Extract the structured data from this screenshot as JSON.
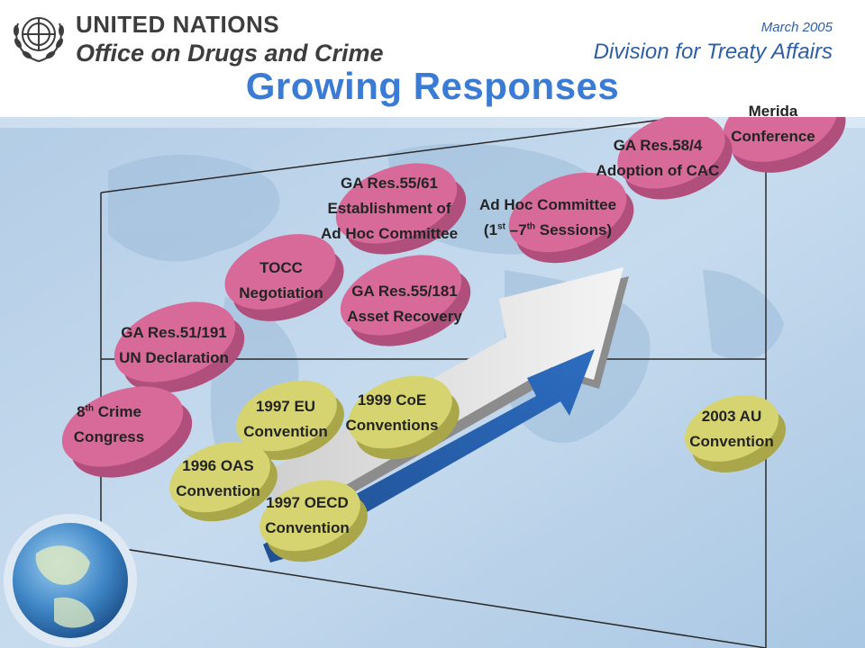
{
  "header": {
    "org_line1": "UNITED NATIONS",
    "org_line2": "Office on Drugs and Crime",
    "date": "March 2005",
    "division": "Division for Treaty Affairs",
    "logo_icon": "un-emblem-icon"
  },
  "slide": {
    "title": "Growing Responses"
  },
  "events": {
    "merida": {
      "line1": "Merida",
      "line2": "Conference"
    },
    "ga58": {
      "line1": "GA Res.58/4",
      "line2": "Adoption of CAC"
    },
    "ga5561": {
      "line1": "GA Res.55/61",
      "line2": "Establishment of",
      "line3": "Ad Hoc Committee"
    },
    "adhoc": {
      "line1": "Ad Hoc Committee",
      "line2_pre": "(1",
      "sup1": "st",
      "line2_mid": " –7",
      "sup2": "th",
      "line2_post": " Sessions)"
    },
    "tocc": {
      "line1": "TOCC",
      "line2": "Negotiation"
    },
    "ga55181": {
      "line1": "GA Res.55/181",
      "line2": "Asset Recovery"
    },
    "ga51191": {
      "line1": "GA Res.51/191",
      "line2": "UN Declaration"
    },
    "crime": {
      "line1_pre": "8",
      "sup": "th",
      "line1_post": " Crime",
      "line2": "Congress"
    },
    "eu1997": {
      "line1": "1997 EU",
      "line2": "Convention"
    },
    "coe1999": {
      "line1": "1999 CoE",
      "line2": "Conventions"
    },
    "oas1996": {
      "line1": "1996 OAS",
      "line2": "Convention"
    },
    "oecd1997": {
      "line1": "1997 OECD",
      "line2": "Convention"
    },
    "au2003": {
      "line1": "2003 AU",
      "line2": "Convention"
    }
  },
  "colors": {
    "pink": "#d86a9a",
    "yellow": "#d6d470",
    "title_blue": "#3a7bd5",
    "division_blue": "#2e5fa6"
  }
}
